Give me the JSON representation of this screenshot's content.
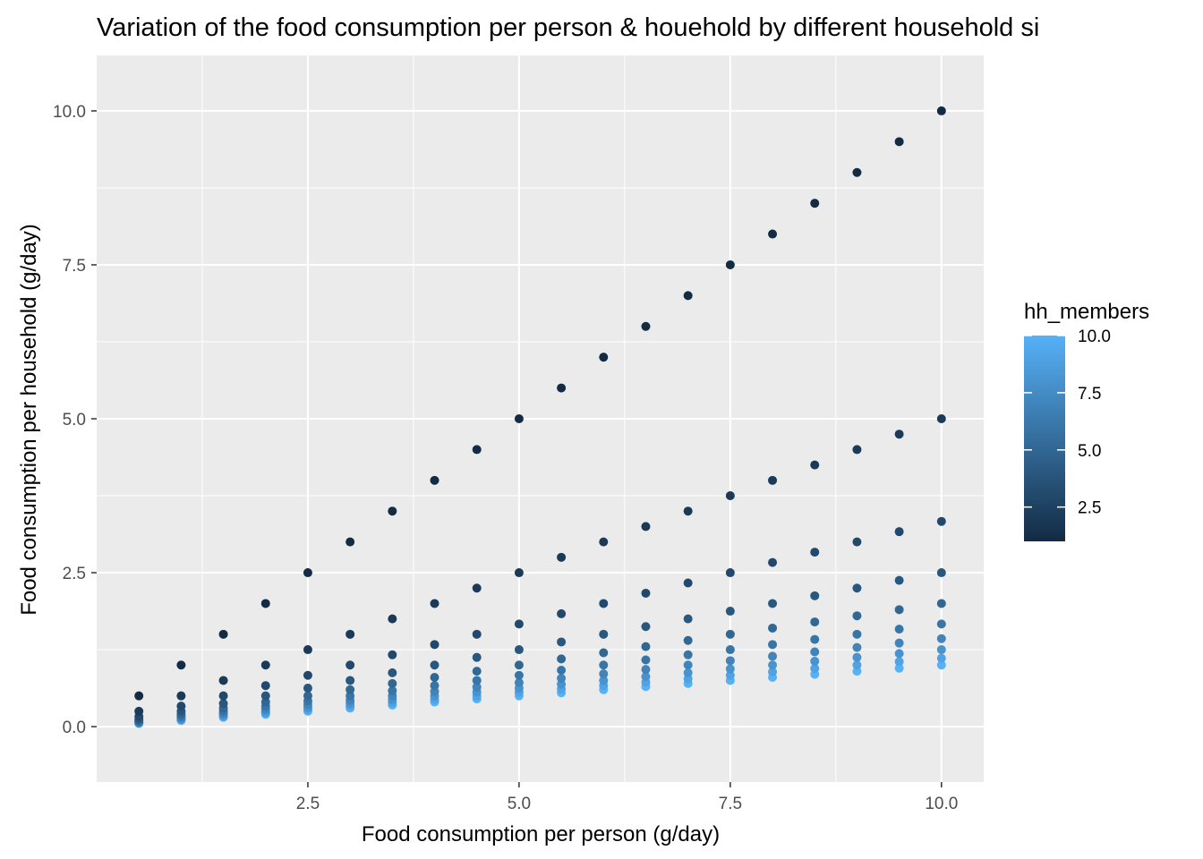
{
  "chart_data": {
    "type": "scatter",
    "title": "Variation of the food consumption per person & houehold by different household si",
    "xlabel": "Food consumption per person (g/day)",
    "ylabel": "Food consumption per household (g/day)",
    "xlim": [
      0.0,
      10.5
    ],
    "ylim": [
      -0.9,
      10.9
    ],
    "x_ticks": [
      2.5,
      5.0,
      7.5,
      10.0
    ],
    "x_tick_labels": [
      "2.5",
      "5.0",
      "7.5",
      "10.0"
    ],
    "y_ticks": [
      0.0,
      2.5,
      5.0,
      7.5,
      10.0
    ],
    "y_tick_labels": [
      "0.0",
      "2.5",
      "5.0",
      "7.5",
      "10.0"
    ],
    "grid": true,
    "x_values": [
      0.5,
      1.0,
      1.5,
      2.0,
      2.5,
      3.0,
      3.5,
      4.0,
      4.5,
      5.0,
      5.5,
      6.0,
      6.5,
      7.0,
      7.5,
      8.0,
      8.5,
      9.0,
      9.5,
      10.0
    ],
    "hh_members_values": [
      1,
      2,
      3,
      4,
      5,
      6,
      7,
      8,
      9,
      10
    ],
    "y_rule": "food consumption per household = food consumption per person / hh_members",
    "legend": {
      "title": "hh_members",
      "type": "colorbar",
      "position": "right",
      "range": [
        1,
        10
      ],
      "ticks": [
        2.5,
        5.0,
        7.5,
        10.0
      ],
      "tick_labels": [
        "2.5",
        "5.0",
        "7.5",
        "10.0"
      ],
      "color_low": "#132B43",
      "color_high": "#56B1F7"
    },
    "panel_background": "#EBEBEB",
    "grid_color": "#FFFFFF"
  }
}
